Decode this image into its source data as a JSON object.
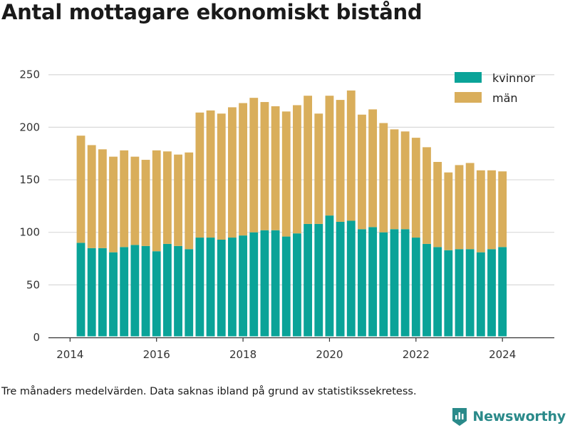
{
  "title": "Antal mottagare ekonomiskt bistånd",
  "footnote": "Tre månaders medelvärden. Data saknas ibland på grund av statistikssekretess.",
  "brand": {
    "name": "Newsworthy",
    "icon": "newsworthy-logo-icon",
    "color": "#2a8a8a"
  },
  "colors": {
    "kvinnor": "#0aa398",
    "man": "#d9ae5b",
    "grid": "#d9d9d9",
    "axis": "#333333"
  },
  "chart_data": {
    "type": "bar",
    "stacked": true,
    "title": "Antal mottagare ekonomiskt bistånd",
    "xlabel": "",
    "ylabel": "",
    "xlim": [
      2013.5,
      2025.2
    ],
    "ylim": [
      0,
      260
    ],
    "yticks": [
      0,
      50,
      100,
      150,
      200,
      250
    ],
    "xticks": [
      2014,
      2016,
      2018,
      2020,
      2022,
      2024
    ],
    "grid": true,
    "legend_position": "top-right",
    "x": [
      2014.25,
      2014.5,
      2014.75,
      2015.0,
      2015.25,
      2015.5,
      2015.75,
      2016.0,
      2016.25,
      2016.5,
      2016.75,
      2017.0,
      2017.25,
      2017.5,
      2017.75,
      2018.0,
      2018.25,
      2018.5,
      2018.75,
      2019.0,
      2019.25,
      2019.5,
      2019.75,
      2020.0,
      2020.25,
      2020.5,
      2020.75,
      2021.0,
      2021.25,
      2021.5,
      2021.75,
      2022.0,
      2022.25,
      2022.5,
      2022.75,
      2023.0,
      2023.25,
      2023.5,
      2023.75,
      2024.0
    ],
    "series": [
      {
        "name": "kvinnor",
        "values": [
          90,
          85,
          85,
          81,
          86,
          88,
          87,
          82,
          89,
          87,
          84,
          95,
          95,
          93,
          95,
          97,
          100,
          102,
          102,
          96,
          99,
          108,
          108,
          116,
          110,
          111,
          103,
          105,
          100,
          103,
          103,
          95,
          89,
          86,
          83,
          84,
          84,
          81,
          84,
          86
        ]
      },
      {
        "name": "män",
        "values": [
          102,
          98,
          94,
          91,
          92,
          84,
          82,
          96,
          88,
          87,
          92,
          119,
          121,
          120,
          124,
          126,
          128,
          122,
          118,
          119,
          122,
          122,
          105,
          114,
          116,
          124,
          109,
          112,
          104,
          95,
          93,
          95,
          92,
          81,
          74,
          80,
          82,
          78,
          75,
          72
        ]
      }
    ]
  }
}
